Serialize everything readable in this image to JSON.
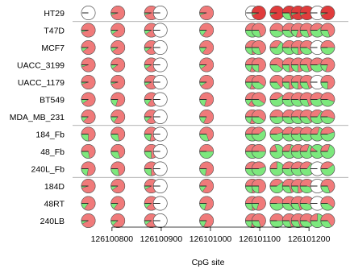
{
  "chart_data": {
    "type": "pie",
    "subtype": "methylation-lollipop",
    "xlabel": "CpG site",
    "x_ticks": [
      126100800,
      126100900,
      126101000,
      126101100,
      126101200
    ],
    "xlim": [
      126100720,
      126101280
    ],
    "sites": [
      126100752,
      126100812,
      126100880,
      126100898,
      126100992,
      126101085,
      126101098,
      126101135,
      126101160,
      126101178,
      126101196,
      126101217,
      126101238
    ],
    "colors": {
      "methylated": "#f07a7a",
      "methylated_dark": "#e03c3c",
      "unmethylated": "#7de87d",
      "missing": "#ffffff",
      "outline": "#555555"
    },
    "group_separators_after": [
      0,
      6,
      9
    ],
    "rows": [
      {
        "name": "HT29",
        "methylated": [
          null,
          0.95,
          0.95,
          0.0,
          0.95,
          null,
          0.95,
          0.95,
          0.7,
          0.95,
          0.95,
          0.0,
          0.95
        ]
      },
      {
        "name": "T47D",
        "methylated": [
          0.95,
          0.9,
          0.9,
          0.0,
          0.85,
          0.6,
          0.7,
          0.55,
          0.65,
          0.8,
          0.7,
          0.4,
          0.7
        ]
      },
      {
        "name": "MCF7",
        "methylated": [
          0.9,
          0.9,
          0.9,
          0.0,
          0.85,
          0.75,
          0.7,
          0.35,
          0.55,
          0.75,
          0.6,
          0.0,
          0.5
        ]
      },
      {
        "name": "UACC_3199",
        "methylated": [
          0.95,
          0.9,
          0.9,
          0.0,
          0.9,
          0.8,
          0.75,
          0.6,
          0.75,
          0.75,
          0.7,
          0.45,
          0.8
        ]
      },
      {
        "name": "UACC_1179",
        "methylated": [
          0.95,
          0.95,
          0.92,
          0.0,
          0.9,
          0.8,
          0.6,
          0.65,
          0.75,
          0.75,
          0.7,
          0.0,
          0.75
        ]
      },
      {
        "name": "BT549",
        "methylated": [
          0.9,
          0.8,
          0.85,
          0.0,
          0.8,
          0.85,
          0.6,
          0.4,
          0.5,
          0.6,
          0.7,
          0.45,
          0.55
        ]
      },
      {
        "name": "MDA_MB_231",
        "methylated": [
          0.88,
          0.85,
          0.88,
          0.0,
          0.82,
          0.8,
          0.6,
          0.5,
          0.6,
          0.65,
          0.65,
          0.35,
          0.55
        ]
      },
      {
        "name": "184_Fb",
        "methylated": [
          0.75,
          0.72,
          0.78,
          0.0,
          0.7,
          0.45,
          0.4,
          0.45,
          0.4,
          0.4,
          0.5,
          0.3,
          0.45
        ]
      },
      {
        "name": "48_Fb",
        "methylated": [
          0.72,
          0.7,
          0.75,
          0.0,
          0.5,
          0.3,
          0.5,
          0.2,
          0.3,
          0.4,
          0.3,
          0.1,
          0.3
        ]
      },
      {
        "name": "240L_Fb",
        "methylated": [
          0.78,
          0.72,
          0.75,
          0.0,
          0.78,
          0.4,
          0.45,
          0.25,
          0.4,
          0.4,
          0.35,
          0.0,
          0.4
        ]
      },
      {
        "name": "184D",
        "methylated": [
          0.95,
          0.9,
          0.92,
          0.0,
          0.85,
          0.75,
          0.75,
          0.4,
          0.7,
          0.75,
          0.55,
          0.0,
          0.7
        ]
      },
      {
        "name": "48RT",
        "methylated": [
          0.85,
          0.85,
          0.88,
          0.0,
          0.8,
          0.75,
          0.8,
          0.5,
          0.65,
          0.7,
          0.55,
          0.0,
          0.6
        ]
      },
      {
        "name": "240LB",
        "methylated": [
          0.92,
          0.88,
          0.9,
          0.0,
          0.82,
          0.78,
          0.7,
          0.5,
          0.7,
          0.7,
          0.6,
          0.25,
          0.65
        ]
      }
    ]
  }
}
